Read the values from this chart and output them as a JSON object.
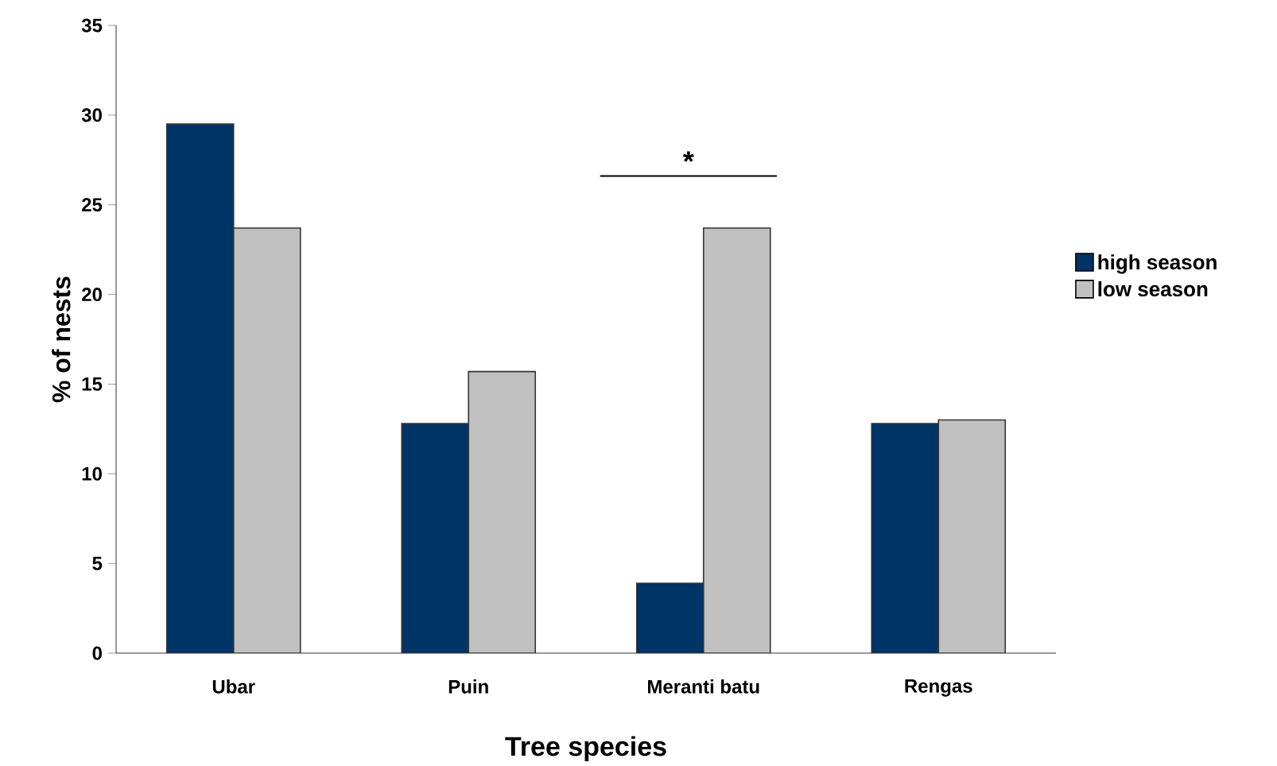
{
  "chart_data": {
    "type": "bar",
    "xlabel": "Tree species",
    "ylabel": "% of nests",
    "categories": [
      "Ubar",
      "Puin",
      "Meranti batu",
      "Rengas"
    ],
    "series": [
      {
        "name": "high season",
        "color": "#003366",
        "values": [
          29.5,
          12.8,
          3.9,
          12.8
        ]
      },
      {
        "name": "low season",
        "color": "#c0c0c0",
        "values": [
          23.7,
          15.7,
          23.7,
          13.0
        ]
      }
    ],
    "ylim": [
      0,
      35
    ],
    "yticks": [
      0,
      5,
      10,
      15,
      20,
      25,
      30,
      35
    ],
    "grid": false,
    "legend": "right",
    "annotations": [
      "*"
    ]
  }
}
